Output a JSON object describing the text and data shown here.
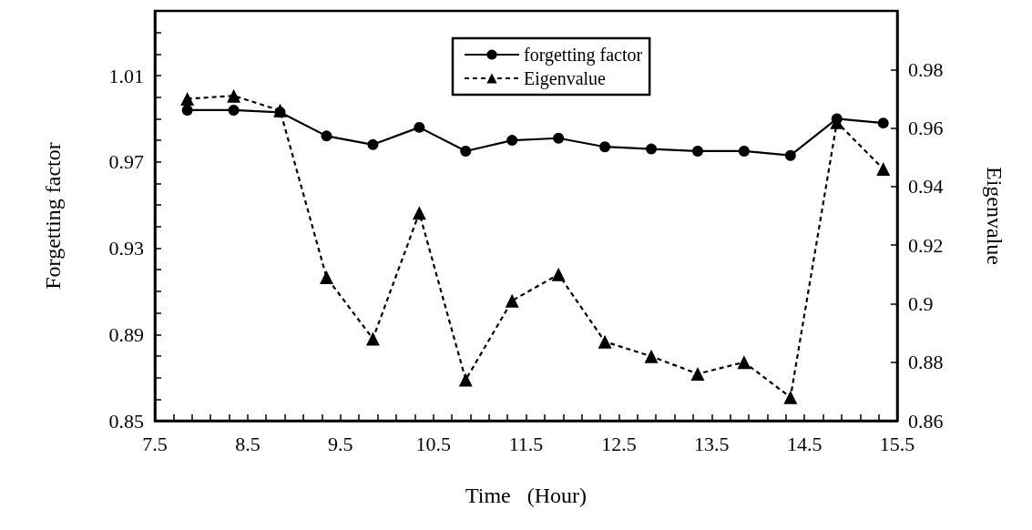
{
  "chart_data": {
    "type": "line",
    "xlabel": "Time   (Hour)",
    "ylabel": "Forgetting factor",
    "y2label": "Eigenvalue",
    "x": [
      7.85,
      8.35,
      8.85,
      9.35,
      9.85,
      10.35,
      10.85,
      11.35,
      11.85,
      12.35,
      12.85,
      13.35,
      13.85,
      14.35,
      14.85,
      15.35
    ],
    "series": [
      {
        "name": "forgetting factor",
        "color": "#000000",
        "marker": "circle",
        "line_style": "solid",
        "values": [
          0.994,
          0.994,
          0.993,
          0.982,
          0.978,
          0.986,
          0.975,
          0.98,
          0.981,
          0.977,
          0.976,
          0.975,
          0.975,
          0.973,
          0.99,
          0.988
        ]
      },
      {
        "name": "Eigenvalue",
        "color": "#000000",
        "marker": "triangle",
        "line_style": "dashed",
        "axis": "y2",
        "values": [
          0.97,
          0.971,
          0.966,
          0.909,
          0.888,
          0.931,
          0.874,
          0.901,
          0.91,
          0.887,
          0.882,
          0.876,
          0.88,
          0.868,
          0.962,
          0.946
        ]
      }
    ],
    "xlim": [
      7.5,
      15.5
    ],
    "xticks": [
      7.5,
      {
        "value": 7.7,
        "label": null
      },
      {
        "value": 7.9,
        "label": null
      },
      {
        "value": 8.1,
        "label": null
      },
      {
        "value": 8.3,
        "label": null
      },
      8.5,
      {
        "value": 8.7,
        "label": null
      },
      {
        "value": 8.9,
        "label": null
      },
      {
        "value": 9.1,
        "label": null
      },
      {
        "value": 9.3,
        "label": null
      },
      9.5,
      {
        "value": 9.7,
        "label": null
      },
      {
        "value": 9.9,
        "label": null
      },
      {
        "value": 10.1,
        "label": null
      },
      {
        "value": 10.3,
        "label": null
      },
      10.5,
      {
        "value": 10.7,
        "label": null
      },
      {
        "value": 10.9,
        "label": null
      },
      {
        "value": 11.1,
        "label": null
      },
      {
        "value": 11.3,
        "label": null
      },
      11.5,
      {
        "value": 11.7,
        "label": null
      },
      {
        "value": 11.9,
        "label": null
      },
      {
        "value": 12.1,
        "label": null
      },
      {
        "value": 12.3,
        "label": null
      },
      12.5,
      {
        "value": 12.7,
        "label": null
      },
      {
        "value": 12.9,
        "label": null
      },
      {
        "value": 13.1,
        "label": null
      },
      {
        "value": 13.3,
        "label": null
      },
      13.5,
      {
        "value": 13.7,
        "label": null
      },
      {
        "value": 13.9,
        "label": null
      },
      {
        "value": 14.1,
        "label": null
      },
      {
        "value": 14.3,
        "label": null
      },
      14.5,
      {
        "value": 14.7,
        "label": null
      },
      {
        "value": 14.9,
        "label": null
      },
      {
        "value": 15.1,
        "label": null
      },
      {
        "value": 15.3,
        "label": null
      },
      15.5
    ],
    "ylim": [
      0.85,
      1.04
    ],
    "yticks": [
      0.85,
      {
        "value": 0.86,
        "label": null
      },
      {
        "value": 0.87,
        "label": null
      },
      {
        "value": 0.88,
        "label": null
      },
      0.89,
      {
        "value": 0.9,
        "label": null
      },
      {
        "value": 0.91,
        "label": null
      },
      {
        "value": 0.92,
        "label": null
      },
      0.93,
      {
        "value": 0.94,
        "label": null
      },
      {
        "value": 0.95,
        "label": null
      },
      {
        "value": 0.96,
        "label": null
      },
      0.97,
      {
        "value": 0.98,
        "label": null
      },
      {
        "value": 0.99,
        "label": null
      },
      {
        "value": 1.0,
        "label": null
      },
      1.01,
      {
        "value": 1.02,
        "label": null
      },
      {
        "value": 1.03,
        "label": null
      }
    ],
    "y2lim": [
      0.86,
      1.0
    ],
    "y2ticks": [
      0.86,
      0.88,
      {
        "value": 0.9,
        "label": "0.9"
      },
      0.92,
      0.94,
      0.96,
      0.98
    ],
    "grid": false,
    "legend": "top"
  }
}
